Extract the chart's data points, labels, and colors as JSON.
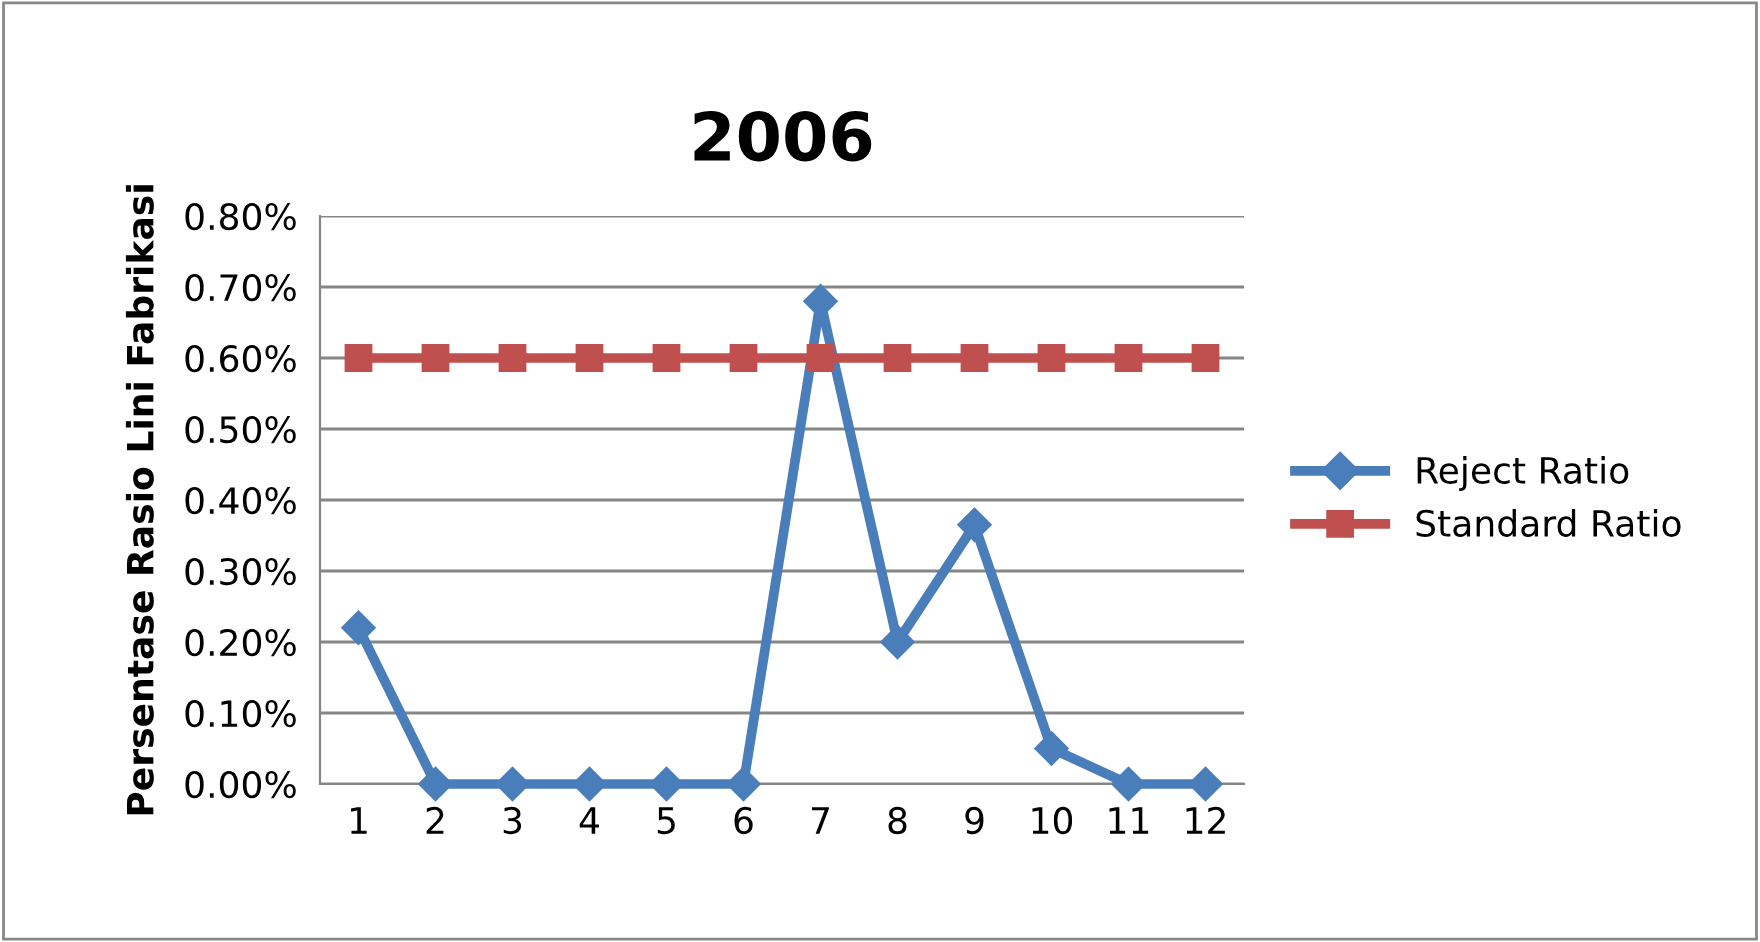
{
  "chart_data": {
    "type": "line",
    "title": "2006",
    "ylabel": "Persentase Rasio Lini Fabrikasi",
    "categories": [
      "1",
      "2",
      "3",
      "4",
      "5",
      "6",
      "7",
      "8",
      "9",
      "10",
      "11",
      "12"
    ],
    "series": [
      {
        "name": "Reject Ratio",
        "color": "#4a7ebb",
        "marker": "diamond",
        "values": [
          0.22,
          0,
          0,
          0,
          0,
          0,
          0.68,
          0.2,
          0.365,
          0.05,
          0,
          0
        ]
      },
      {
        "name": "Standard Ratio",
        "color": "#c0504d",
        "marker": "square",
        "values": [
          0.6,
          0.6,
          0.6,
          0.6,
          0.6,
          0.6,
          0.6,
          0.6,
          0.6,
          0.6,
          0.6,
          0.6
        ]
      }
    ],
    "ylim": [
      0,
      0.8
    ],
    "yticks": [
      {
        "value": 0,
        "label": "0.00%"
      },
      {
        "value": 0.1,
        "label": "0.10%"
      },
      {
        "value": 0.2,
        "label": "0.20%"
      },
      {
        "value": 0.3,
        "label": "0.30%"
      },
      {
        "value": 0.4,
        "label": "0.40%"
      },
      {
        "value": 0.5,
        "label": "0.50%"
      },
      {
        "value": 0.6,
        "label": "0.60%"
      },
      {
        "value": 0.7,
        "label": "0.70%"
      },
      {
        "value": 0.8,
        "label": "0.80%"
      }
    ],
    "grid": "y",
    "legend": "right",
    "line_style": "solid"
  }
}
